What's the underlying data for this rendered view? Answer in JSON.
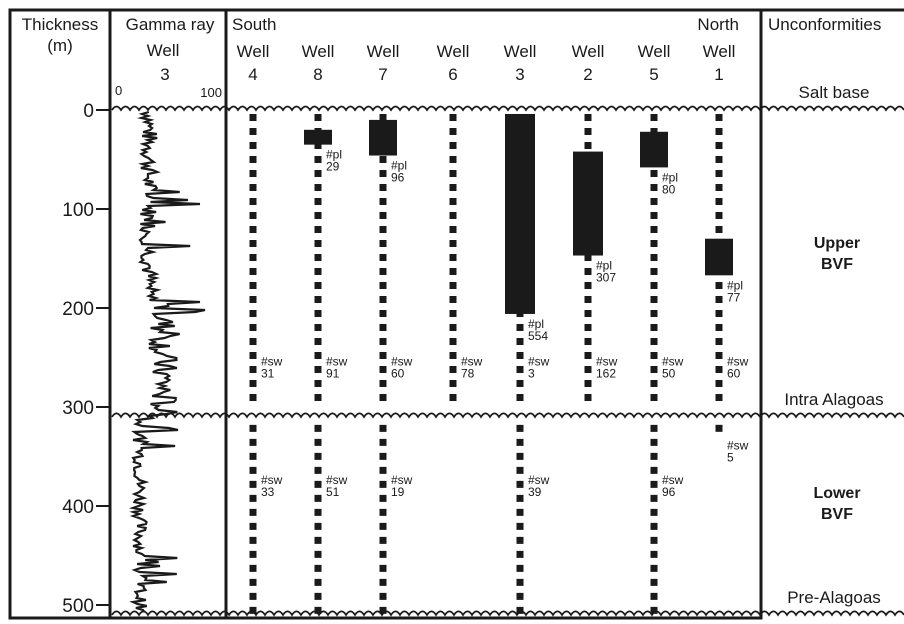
{
  "headers": {
    "thickness": [
      "Thickness",
      "(m)"
    ],
    "gamma": [
      "Gamma ray",
      "Well",
      "3"
    ],
    "south": "South",
    "north": "North",
    "unconformities": "Unconformities"
  },
  "axis": {
    "ticks": [
      0,
      100,
      200,
      300,
      400,
      500
    ],
    "range": [
      0,
      500
    ],
    "unit": "m"
  },
  "gamma_scale": {
    "min": "0",
    "max": "100"
  },
  "wells": [
    {
      "word": "Well",
      "num": "4",
      "bar": null,
      "pl_label": null,
      "sw_upper": [
        "#sw",
        "31"
      ],
      "sw_lower": [
        "#sw",
        "33"
      ],
      "lower_end": 510
    },
    {
      "word": "Well",
      "num": "8",
      "bar": [
        20,
        35
      ],
      "pl_label": [
        "#pl",
        "29"
      ],
      "sw_upper": [
        "#sw",
        "91"
      ],
      "sw_lower": [
        "#sw",
        "51"
      ],
      "lower_end": 510
    },
    {
      "word": "Well",
      "num": "7",
      "bar": [
        10,
        46
      ],
      "pl_label": [
        "#pl",
        "96"
      ],
      "sw_upper": [
        "#sw",
        "60"
      ],
      "sw_lower": [
        "#sw",
        "19"
      ],
      "lower_end": 510
    },
    {
      "word": "Well",
      "num": "6",
      "bar": null,
      "pl_label": null,
      "sw_upper": [
        "#sw",
        "78"
      ],
      "sw_lower": null,
      "lower_end": null
    },
    {
      "word": "Well",
      "num": "3",
      "bar": [
        4,
        206
      ],
      "pl_label": [
        "#pl",
        "554"
      ],
      "sw_upper": [
        "#sw",
        "3"
      ],
      "sw_lower": [
        "#sw",
        "39"
      ],
      "lower_end": 510
    },
    {
      "word": "Well",
      "num": "2",
      "bar": [
        42,
        147
      ],
      "pl_label": [
        "#pl",
        "307"
      ],
      "sw_upper": [
        "#sw",
        "162"
      ],
      "sw_lower": null,
      "lower_end": null
    },
    {
      "word": "Well",
      "num": "5",
      "bar": [
        22,
        58
      ],
      "pl_label": [
        "#pl",
        "80"
      ],
      "sw_upper": [
        "#sw",
        "50"
      ],
      "sw_lower": [
        "#sw",
        "96"
      ],
      "lower_end": 510
    },
    {
      "word": "Well",
      "num": "1",
      "bar": [
        130,
        167
      ],
      "pl_label": [
        "#pl",
        "77"
      ],
      "sw_upper": [
        "#sw",
        "60"
      ],
      "sw_lower": [
        "#sw",
        "5"
      ],
      "lower_end": 330
    }
  ],
  "unconformities": [
    {
      "label": "Salt base",
      "depth": 0
    },
    {
      "label": "Intra Alagoas",
      "depth": 310
    },
    {
      "label": "Pre-Alagoas",
      "depth": 510
    }
  ],
  "zones": [
    {
      "lines": [
        "Upper",
        "BVF"
      ]
    },
    {
      "lines": [
        "Lower",
        "BVF"
      ]
    }
  ],
  "colors": {
    "ink": "#1a1a1a",
    "background": "#ffffff"
  }
}
